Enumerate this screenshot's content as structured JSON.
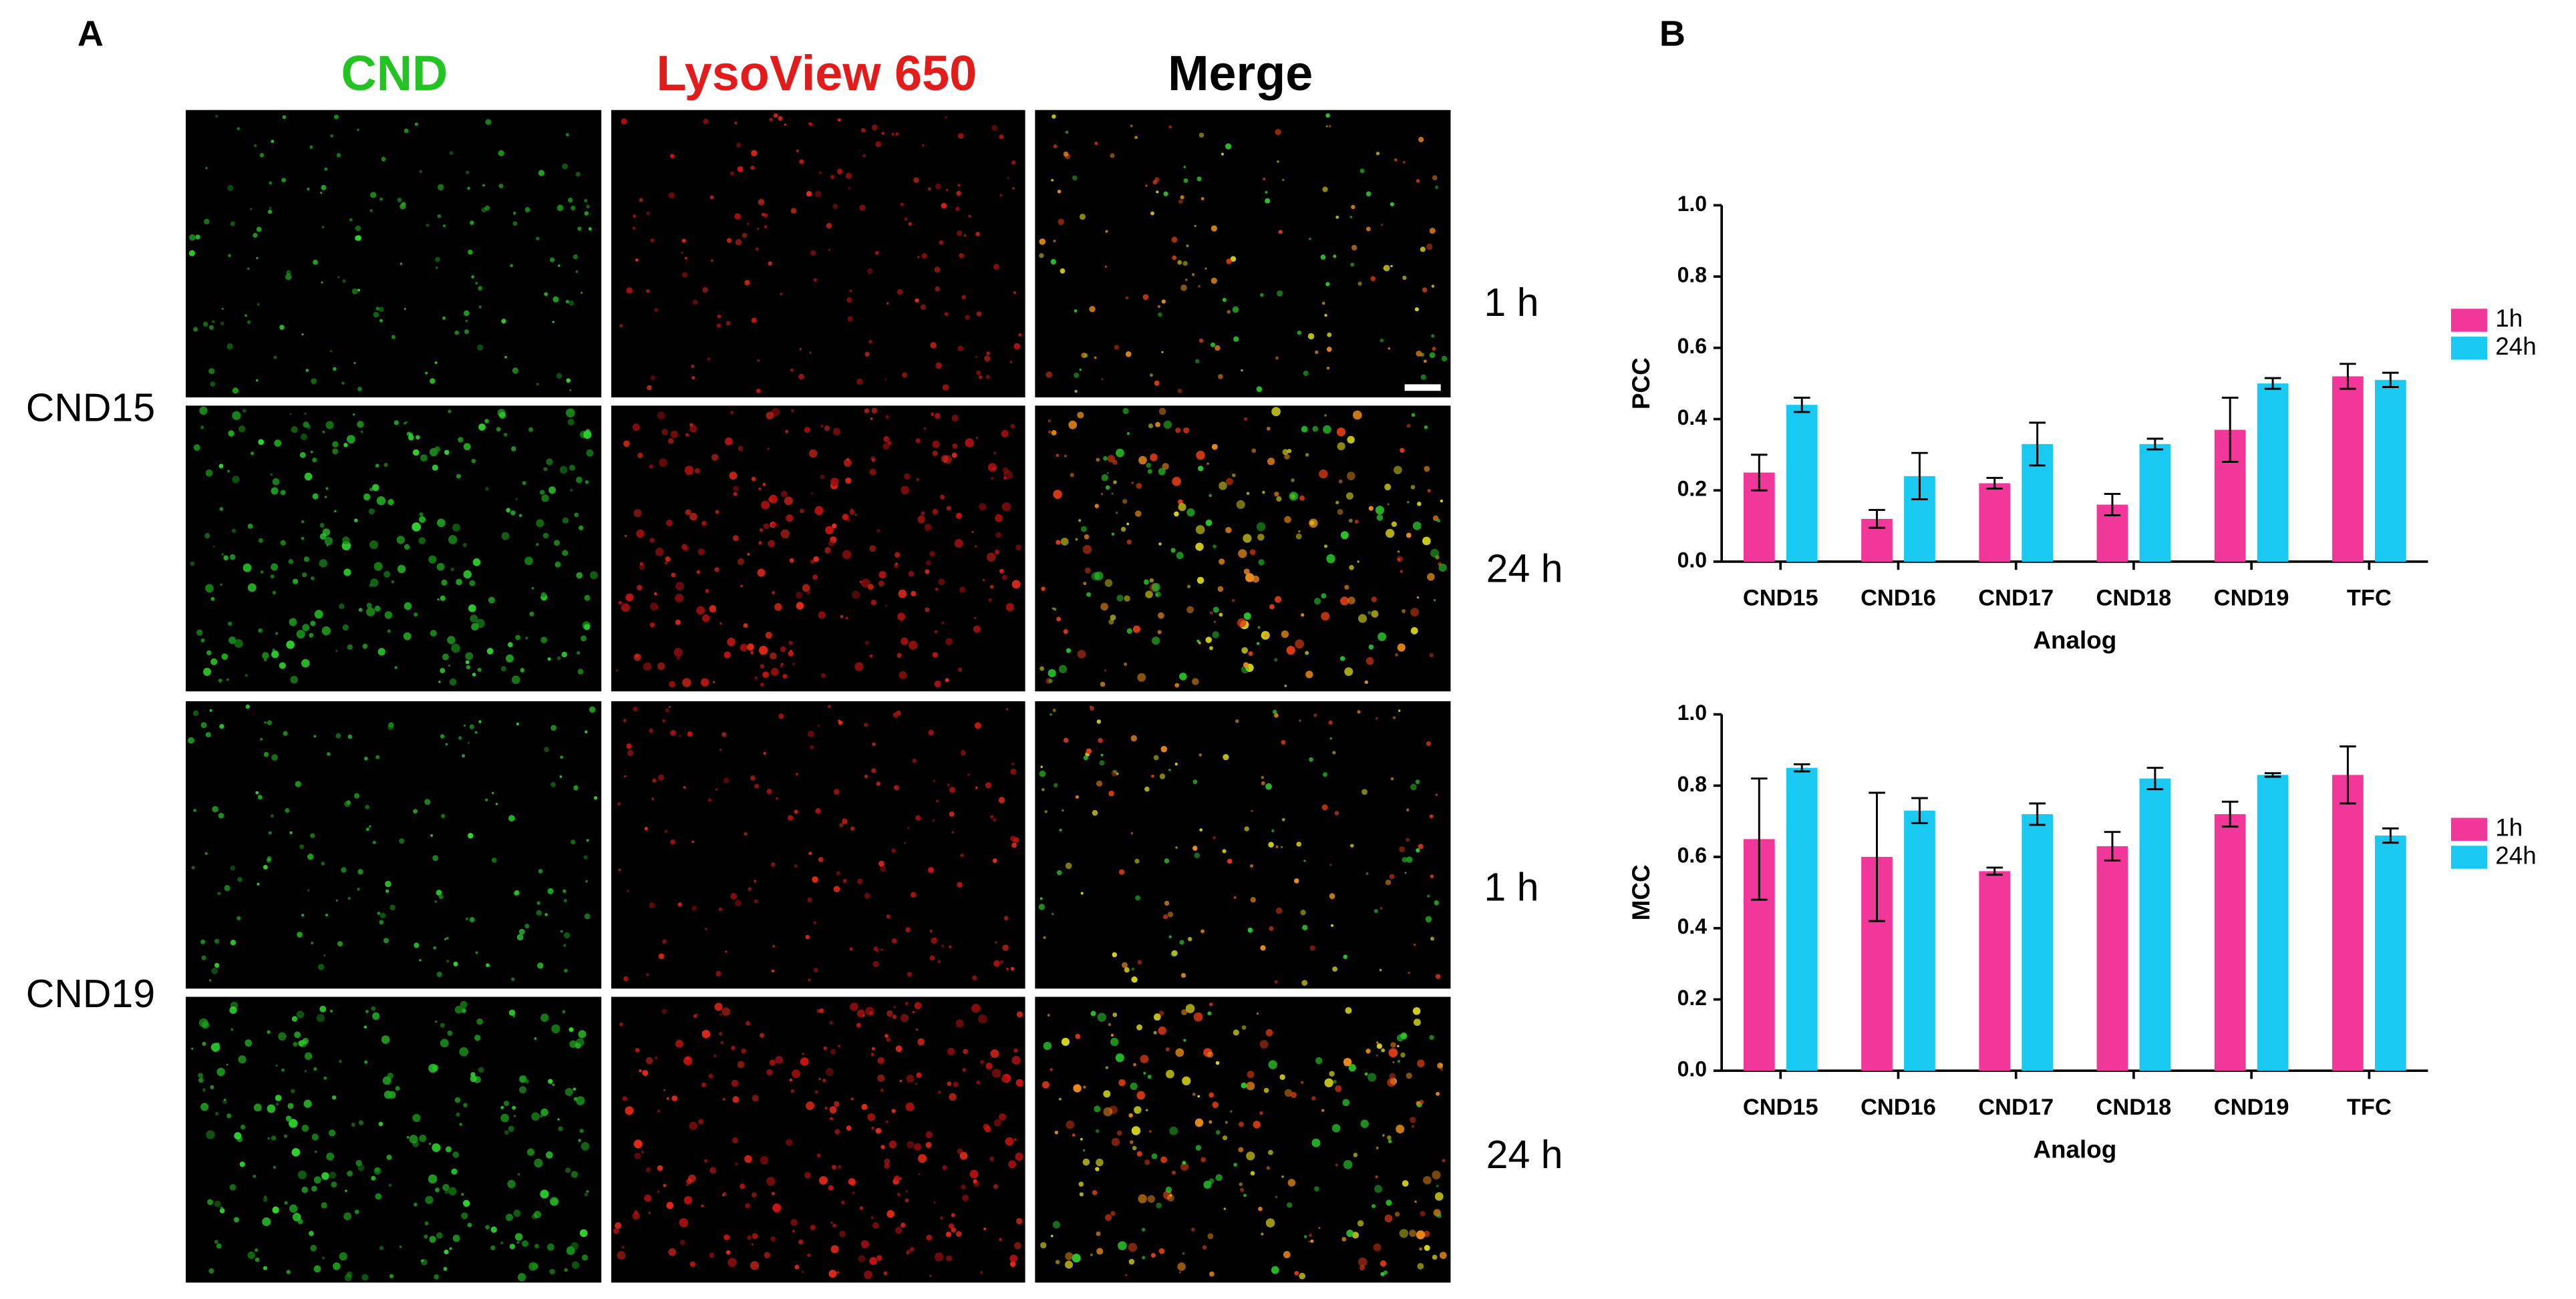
{
  "panel_a": {
    "label": "A",
    "columns": [
      "CND",
      "LysoView 650",
      "Merge"
    ],
    "rows": [
      "CND15",
      "CND19"
    ],
    "times": [
      "1 h",
      "24 h",
      "1 h",
      "24 h"
    ]
  },
  "panel_b": {
    "label": "B"
  },
  "chart_data": [
    {
      "type": "bar",
      "ylabel": "PCC",
      "xlabel": "Analog",
      "categories": [
        "CND15",
        "CND16",
        "CND17",
        "CND18",
        "CND19",
        "TFC"
      ],
      "series": [
        {
          "name": "1h",
          "color": "#f2379b",
          "values": [
            0.25,
            0.12,
            0.22,
            0.16,
            0.37,
            0.52
          ],
          "errors": [
            0.05,
            0.025,
            0.015,
            0.03,
            0.09,
            0.035
          ]
        },
        {
          "name": "24h",
          "color": "#19c9f2",
          "values": [
            0.44,
            0.24,
            0.33,
            0.33,
            0.5,
            0.51
          ],
          "errors": [
            0.02,
            0.065,
            0.06,
            0.015,
            0.015,
            0.02
          ]
        }
      ],
      "ylim": [
        0,
        1
      ],
      "yticks": [
        {
          "value": 0,
          "label": "0.0"
        },
        {
          "value": 0.2,
          "label": "0.2"
        },
        {
          "value": 0.4,
          "label": "0.4"
        },
        {
          "value": 0.6,
          "label": "0.6"
        },
        {
          "value": 0.8,
          "label": "0.8"
        },
        {
          "value": 1,
          "label": "1.0"
        }
      ]
    },
    {
      "type": "bar",
      "ylabel": "MCC",
      "xlabel": "Analog",
      "categories": [
        "CND15",
        "CND16",
        "CND17",
        "CND18",
        "CND19",
        "TFC"
      ],
      "series": [
        {
          "name": "1h",
          "color": "#f2379b",
          "values": [
            0.65,
            0.6,
            0.56,
            0.63,
            0.72,
            0.83
          ],
          "errors": [
            0.17,
            0.18,
            0.01,
            0.04,
            0.035,
            0.08
          ]
        },
        {
          "name": "24h",
          "color": "#19c9f2",
          "values": [
            0.85,
            0.73,
            0.72,
            0.82,
            0.83,
            0.66
          ],
          "errors": [
            0.01,
            0.035,
            0.03,
            0.03,
            0.005,
            0.02
          ]
        }
      ],
      "ylim": [
        0,
        1
      ],
      "yticks": [
        {
          "value": 0,
          "label": "0.0"
        },
        {
          "value": 0.2,
          "label": "0.2"
        },
        {
          "value": 0.4,
          "label": "0.4"
        },
        {
          "value": 0.6,
          "label": "0.6"
        },
        {
          "value": 0.8,
          "label": "0.8"
        },
        {
          "value": 1,
          "label": "1.0"
        }
      ]
    }
  ]
}
